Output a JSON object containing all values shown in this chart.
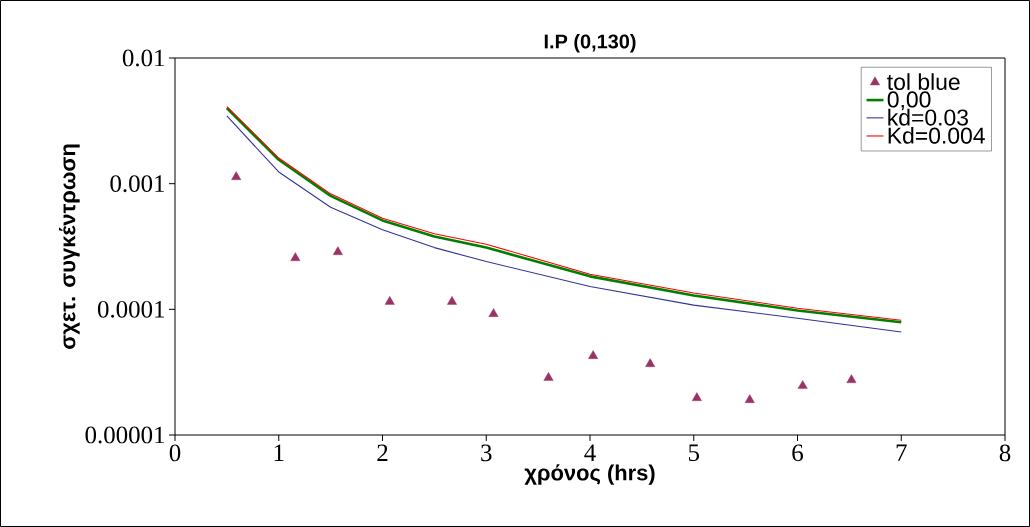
{
  "chart_data": {
    "type": "line",
    "title": "I.P (0,130)",
    "xlabel": "χρόνος (hrs)",
    "ylabel": "σχετ. συγκέντρωση",
    "log": "y",
    "grid": false,
    "legend": "top right",
    "xlim": [
      0,
      8
    ],
    "xticks": [
      0,
      1,
      2,
      3,
      4,
      5,
      6,
      7,
      8
    ],
    "ylim": [
      1e-05,
      0.01
    ],
    "yticks": [
      {
        "value": 1e-05,
        "label": "0.00001"
      },
      {
        "value": 0.0001,
        "label": "0.0001"
      },
      {
        "value": 0.001,
        "label": "0.001"
      },
      {
        "value": 0.01,
        "label": "0.01"
      }
    ],
    "series": [
      {
        "name": "tol blue",
        "type": "scatter",
        "marker": "triangle",
        "color": "#993366",
        "x": [
          0.59,
          1.16,
          1.57,
          2.07,
          2.67,
          3.07,
          3.6,
          4.03,
          4.58,
          5.03,
          5.54,
          6.05,
          6.52
        ],
        "values": [
          0.00113,
          0.000256,
          0.000286,
          0.000115,
          0.000115,
          9.2e-05,
          2.85e-05,
          4.26e-05,
          3.68e-05,
          1.97e-05,
          1.9e-05,
          2.46e-05,
          2.74e-05
        ]
      },
      {
        "name": "0,00",
        "type": "line",
        "marker": "none",
        "color": "#008000",
        "x": [
          0.5,
          1,
          1.5,
          2,
          2.5,
          3,
          4,
          5,
          6,
          7
        ],
        "values": [
          0.004,
          0.00155,
          0.0008,
          0.00051,
          0.00038,
          0.00031,
          0.000183,
          0.000129,
          9.8e-05,
          7.9e-05
        ]
      },
      {
        "name": "kd=0.03",
        "type": "line",
        "marker": "none",
        "color": "#333399",
        "x": [
          0.5,
          1,
          1.5,
          2,
          2.5,
          3,
          4,
          5,
          6,
          7
        ],
        "values": [
          0.00346,
          0.00124,
          0.00065,
          0.00043,
          0.00031,
          0.00024,
          0.000152,
          0.000108,
          8.5e-05,
          6.6e-05
        ]
      },
      {
        "name": "Kd=0.004",
        "type": "line",
        "marker": "none",
        "color": "#ff0000",
        "x": [
          0.5,
          1,
          1.5,
          2,
          2.5,
          3,
          4,
          5,
          6,
          7
        ],
        "values": [
          0.0041,
          0.0016,
          0.00083,
          0.00053,
          0.0004,
          0.00033,
          0.00019,
          0.000135,
          0.000102,
          8.2e-05
        ]
      }
    ]
  }
}
